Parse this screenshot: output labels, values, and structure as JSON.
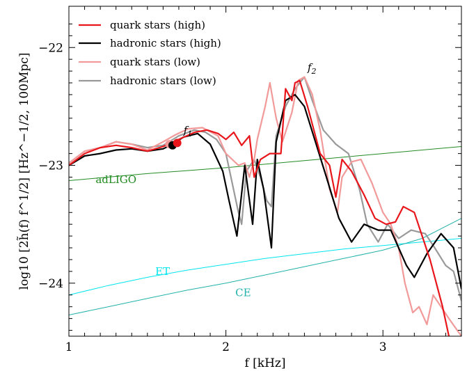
{
  "chart_data": {
    "type": "line",
    "xlabel": "f [kHz]",
    "ylabel": "log10 [2h̃(f) f^1/2] [Hz^−1/2, 100Mpc]",
    "xlim": [
      1.0,
      3.5
    ],
    "ylim": [
      -24.45,
      -21.65
    ],
    "x_ticks": [
      1,
      2,
      3
    ],
    "y_ticks": [
      -22,
      -23,
      -24
    ],
    "legend_position": "top-left",
    "series": [
      {
        "name": "quark stars (high)",
        "color": "#e8161b",
        "width": 2.2,
        "points": [
          [
            1.0,
            -23.0
          ],
          [
            1.1,
            -22.9
          ],
          [
            1.2,
            -22.85
          ],
          [
            1.3,
            -22.83
          ],
          [
            1.4,
            -22.85
          ],
          [
            1.5,
            -22.88
          ],
          [
            1.6,
            -22.84
          ],
          [
            1.7,
            -22.78
          ],
          [
            1.8,
            -22.72
          ],
          [
            1.88,
            -22.7
          ],
          [
            1.95,
            -22.73
          ],
          [
            2.0,
            -22.78
          ],
          [
            2.05,
            -22.72
          ],
          [
            2.1,
            -22.83
          ],
          [
            2.15,
            -22.75
          ],
          [
            2.18,
            -23.1
          ],
          [
            2.22,
            -22.95
          ],
          [
            2.28,
            -22.9
          ],
          [
            2.35,
            -22.9
          ],
          [
            2.38,
            -22.35
          ],
          [
            2.42,
            -22.45
          ],
          [
            2.44,
            -22.3
          ],
          [
            2.47,
            -22.28
          ],
          [
            2.52,
            -22.5
          ],
          [
            2.6,
            -22.9
          ],
          [
            2.66,
            -23.0
          ],
          [
            2.7,
            -23.27
          ],
          [
            2.74,
            -22.95
          ],
          [
            2.8,
            -23.05
          ],
          [
            2.88,
            -23.25
          ],
          [
            2.95,
            -23.45
          ],
          [
            3.02,
            -23.5
          ],
          [
            3.08,
            -23.48
          ],
          [
            3.13,
            -23.35
          ],
          [
            3.2,
            -23.4
          ],
          [
            3.3,
            -23.8
          ],
          [
            3.38,
            -24.2
          ],
          [
            3.42,
            -24.45
          ]
        ]
      },
      {
        "name": "hadronic stars (high)",
        "color": "#000000",
        "width": 2.2,
        "points": [
          [
            1.0,
            -23.0
          ],
          [
            1.1,
            -22.92
          ],
          [
            1.2,
            -22.9
          ],
          [
            1.3,
            -22.87
          ],
          [
            1.4,
            -22.86
          ],
          [
            1.5,
            -22.88
          ],
          [
            1.6,
            -22.86
          ],
          [
            1.66,
            -22.82
          ],
          [
            1.73,
            -22.76
          ],
          [
            1.82,
            -22.73
          ],
          [
            1.9,
            -22.82
          ],
          [
            1.98,
            -23.05
          ],
          [
            2.02,
            -23.3
          ],
          [
            2.07,
            -23.6
          ],
          [
            2.12,
            -23.0
          ],
          [
            2.14,
            -23.2
          ],
          [
            2.17,
            -23.5
          ],
          [
            2.2,
            -22.95
          ],
          [
            2.24,
            -23.2
          ],
          [
            2.27,
            -23.5
          ],
          [
            2.29,
            -23.7
          ],
          [
            2.32,
            -22.8
          ],
          [
            2.38,
            -22.45
          ],
          [
            2.44,
            -22.4
          ],
          [
            2.5,
            -22.5
          ],
          [
            2.57,
            -22.8
          ],
          [
            2.64,
            -23.1
          ],
          [
            2.72,
            -23.45
          ],
          [
            2.8,
            -23.65
          ],
          [
            2.88,
            -23.5
          ],
          [
            2.97,
            -23.55
          ],
          [
            3.05,
            -23.55
          ],
          [
            3.15,
            -23.85
          ],
          [
            3.2,
            -23.95
          ],
          [
            3.28,
            -23.75
          ],
          [
            3.37,
            -23.58
          ],
          [
            3.45,
            -23.7
          ],
          [
            3.5,
            -24.05
          ]
        ]
      },
      {
        "name": "quark stars (low)",
        "color": "#f29999",
        "width": 2.2,
        "points": [
          [
            1.0,
            -22.98
          ],
          [
            1.1,
            -22.88
          ],
          [
            1.2,
            -22.85
          ],
          [
            1.3,
            -22.8
          ],
          [
            1.4,
            -22.82
          ],
          [
            1.5,
            -22.87
          ],
          [
            1.6,
            -22.8
          ],
          [
            1.68,
            -22.74
          ],
          [
            1.76,
            -22.69
          ],
          [
            1.85,
            -22.68
          ],
          [
            1.95,
            -22.75
          ],
          [
            2.0,
            -22.9
          ],
          [
            2.08,
            -23.0
          ],
          [
            2.12,
            -22.98
          ],
          [
            2.15,
            -23.1
          ],
          [
            2.18,
            -22.95
          ],
          [
            2.2,
            -22.78
          ],
          [
            2.25,
            -22.5
          ],
          [
            2.28,
            -22.3
          ],
          [
            2.32,
            -22.6
          ],
          [
            2.36,
            -22.8
          ],
          [
            2.42,
            -22.55
          ],
          [
            2.46,
            -22.28
          ],
          [
            2.5,
            -22.25
          ],
          [
            2.55,
            -22.4
          ],
          [
            2.6,
            -22.7
          ],
          [
            2.66,
            -23.2
          ],
          [
            2.71,
            -23.4
          ],
          [
            2.74,
            -23.1
          ],
          [
            2.8,
            -22.97
          ],
          [
            2.86,
            -22.95
          ],
          [
            2.93,
            -23.15
          ],
          [
            3.0,
            -23.4
          ],
          [
            3.05,
            -23.5
          ],
          [
            3.1,
            -23.7
          ],
          [
            3.14,
            -24.0
          ],
          [
            3.19,
            -24.25
          ],
          [
            3.23,
            -24.2
          ],
          [
            3.28,
            -24.35
          ],
          [
            3.32,
            -24.1
          ],
          [
            3.37,
            -24.2
          ],
          [
            3.42,
            -24.3
          ],
          [
            3.5,
            -24.45
          ]
        ]
      },
      {
        "name": "hadronic stars (low)",
        "color": "#999999",
        "width": 2.2,
        "points": [
          [
            1.0,
            -22.98
          ],
          [
            1.1,
            -22.88
          ],
          [
            1.2,
            -22.85
          ],
          [
            1.3,
            -22.8
          ],
          [
            1.4,
            -22.82
          ],
          [
            1.5,
            -22.85
          ],
          [
            1.6,
            -22.83
          ],
          [
            1.7,
            -22.75
          ],
          [
            1.8,
            -22.7
          ],
          [
            1.87,
            -22.72
          ],
          [
            1.94,
            -22.78
          ],
          [
            2.0,
            -22.9
          ],
          [
            2.04,
            -23.15
          ],
          [
            2.08,
            -23.4
          ],
          [
            2.1,
            -23.5
          ],
          [
            2.13,
            -23.05
          ],
          [
            2.18,
            -22.95
          ],
          [
            2.22,
            -23.1
          ],
          [
            2.26,
            -23.3
          ],
          [
            2.29,
            -23.35
          ],
          [
            2.32,
            -22.75
          ],
          [
            2.38,
            -22.5
          ],
          [
            2.44,
            -22.35
          ],
          [
            2.5,
            -22.25
          ],
          [
            2.55,
            -22.45
          ],
          [
            2.62,
            -22.7
          ],
          [
            2.7,
            -22.82
          ],
          [
            2.78,
            -22.9
          ],
          [
            2.85,
            -23.2
          ],
          [
            2.9,
            -23.5
          ],
          [
            2.97,
            -23.65
          ],
          [
            3.03,
            -23.5
          ],
          [
            3.1,
            -23.62
          ],
          [
            3.18,
            -23.55
          ],
          [
            3.27,
            -23.58
          ],
          [
            3.33,
            -23.7
          ],
          [
            3.4,
            -23.85
          ],
          [
            3.45,
            -23.9
          ],
          [
            3.5,
            -24.15
          ]
        ]
      },
      {
        "name": "adLIGO",
        "color": "#228b22",
        "width": 1.0,
        "points": [
          [
            1.0,
            -23.13
          ],
          [
            1.5,
            -23.07
          ],
          [
            2.0,
            -23.02
          ],
          [
            2.5,
            -22.96
          ],
          [
            3.0,
            -22.9
          ],
          [
            3.5,
            -22.84
          ]
        ]
      },
      {
        "name": "ET",
        "color": "#00e5ee",
        "width": 1.0,
        "points": [
          [
            1.0,
            -24.1
          ],
          [
            1.25,
            -24.02
          ],
          [
            1.5,
            -23.95
          ],
          [
            1.75,
            -23.89
          ],
          [
            2.0,
            -23.84
          ],
          [
            2.25,
            -23.79
          ],
          [
            2.5,
            -23.75
          ],
          [
            2.75,
            -23.71
          ],
          [
            3.0,
            -23.68
          ],
          [
            3.25,
            -23.65
          ],
          [
            3.5,
            -23.62
          ]
        ]
      },
      {
        "name": "CE",
        "color": "#20b2aa",
        "width": 1.0,
        "points": [
          [
            1.0,
            -24.27
          ],
          [
            1.25,
            -24.2
          ],
          [
            1.5,
            -24.13
          ],
          [
            1.75,
            -24.06
          ],
          [
            2.0,
            -24.0
          ],
          [
            2.25,
            -23.93
          ],
          [
            2.5,
            -23.86
          ],
          [
            2.75,
            -23.79
          ],
          [
            3.0,
            -23.72
          ],
          [
            3.25,
            -23.62
          ],
          [
            3.5,
            -23.45
          ]
        ]
      }
    ],
    "markers": [
      {
        "x": 1.64,
        "y": -22.82,
        "color": "#f29999",
        "r": 6
      },
      {
        "x": 1.66,
        "y": -22.83,
        "color": "#000000",
        "r": 6
      },
      {
        "x": 1.69,
        "y": -22.81,
        "color": "#e8161b",
        "r": 6
      }
    ],
    "annotations": [
      {
        "text": "adLIGO",
        "x": 1.17,
        "y": -23.15,
        "color": "#228b22"
      },
      {
        "text": "ET",
        "x": 1.55,
        "y": -23.93,
        "color": "#00e5ee"
      },
      {
        "text": "CE",
        "x": 2.06,
        "y": -24.11,
        "color": "#20b2aa"
      },
      {
        "text": "f1",
        "x": 1.73,
        "y": -22.73,
        "color": "#000000"
      },
      {
        "text": "f2",
        "x": 2.52,
        "y": -22.2,
        "color": "#000000"
      }
    ],
    "legend_entries": [
      "quark stars (high)",
      "hadronic stars (high)",
      "quark stars (low)",
      "hadronic stars (low)"
    ]
  }
}
